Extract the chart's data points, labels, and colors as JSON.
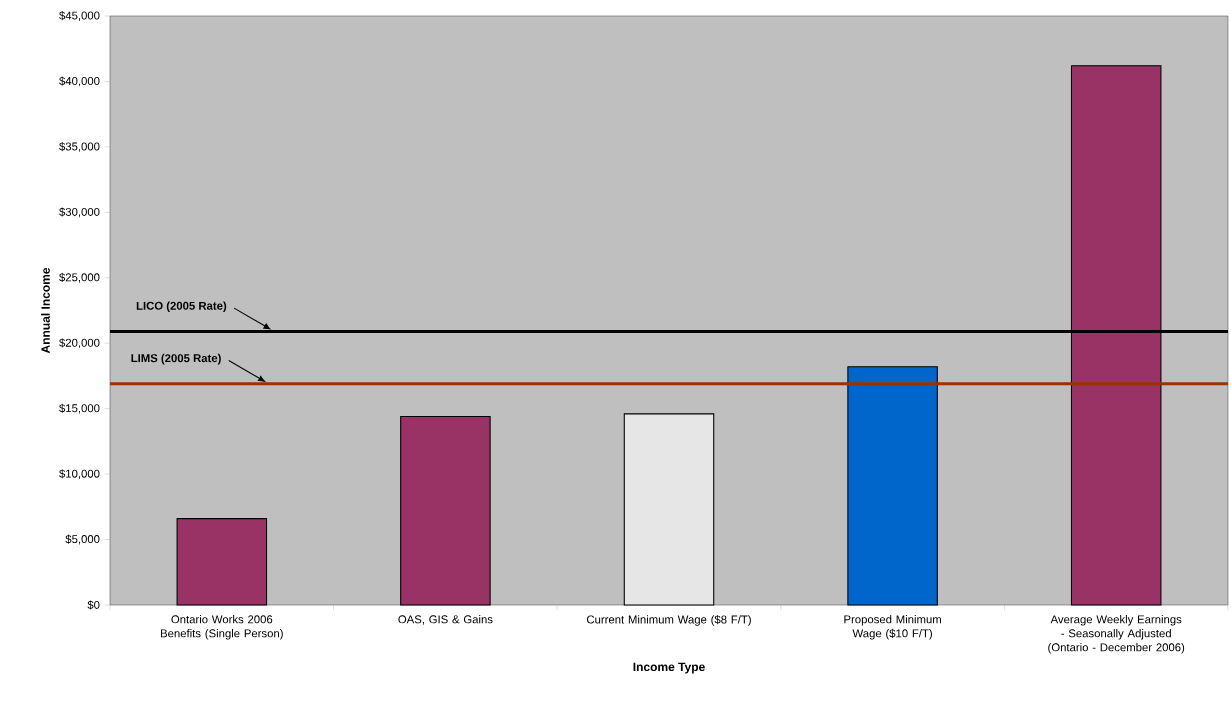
{
  "chart_data": {
    "type": "bar",
    "xlabel": "Income Type",
    "ylabel": "Annual Income",
    "categories": [
      "Ontario Works 2006 Benefits (Single Person)",
      "OAS, GIS & Gains",
      "Current Minimum Wage ($8 F/T)",
      "Proposed Minimum Wage ($10 F/T)",
      "Average Weekly Earnings - Seasonally Adjusted (Ontario - December 2006)"
    ],
    "values": [
      6600,
      14400,
      14600,
      18200,
      41200
    ],
    "colors": [
      "#993366",
      "#993366",
      "#e6e6e6",
      "#0066cc",
      "#993366"
    ],
    "ylim": [
      0,
      45000
    ],
    "yticks": [
      {
        "value": 0,
        "label": "$0"
      },
      {
        "value": 5000,
        "label": "$5,000"
      },
      {
        "value": 10000,
        "label": "$10,000"
      },
      {
        "value": 15000,
        "label": "$15,000"
      },
      {
        "value": 20000,
        "label": "$20,000"
      },
      {
        "value": 25000,
        "label": "$25,000"
      },
      {
        "value": 30000,
        "label": "$30,000"
      },
      {
        "value": 35000,
        "label": "$35,000"
      },
      {
        "value": 40000,
        "label": "$40,000"
      },
      {
        "value": 45000,
        "label": "$45,000"
      }
    ],
    "ref_lines": [
      {
        "axis": "y",
        "value": 20900,
        "label": "LICO (2005 Rate)",
        "color": "#000000"
      },
      {
        "axis": "y",
        "value": 16900,
        "label": "LIMS (2005 Rate)",
        "color": "#993300"
      }
    ],
    "grid": false
  }
}
